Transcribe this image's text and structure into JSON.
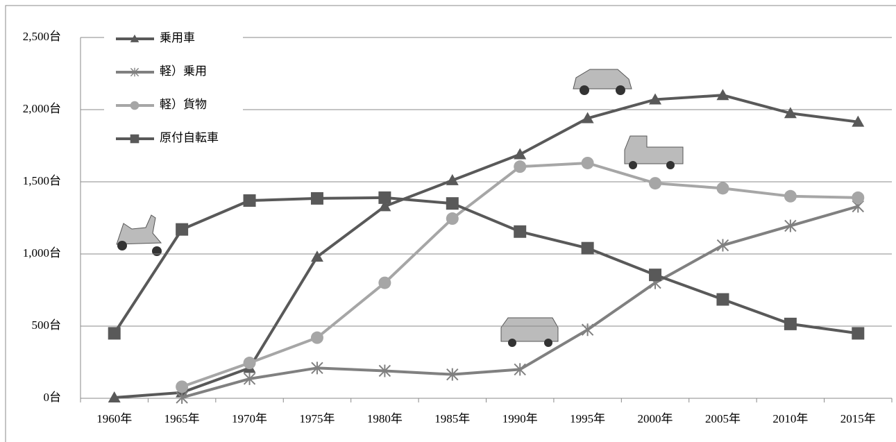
{
  "chart_data": {
    "type": "line",
    "categories": [
      "1960年",
      "1965年",
      "1970年",
      "1975年",
      "1980年",
      "1985年",
      "1990年",
      "1995年",
      "2000年",
      "2005年",
      "2010年",
      "2015年"
    ],
    "series": [
      {
        "name": "乗用車",
        "color": "#595959",
        "marker": "triangle",
        "values": [
          5,
          40,
          210,
          980,
          1330,
          1510,
          1690,
          1940,
          2070,
          2100,
          1975,
          1915
        ]
      },
      {
        "name": "軽）乗用",
        "color": "#808080",
        "marker": "asterisk",
        "values": [
          null,
          5,
          135,
          210,
          190,
          165,
          200,
          475,
          800,
          1060,
          1195,
          1330
        ]
      },
      {
        "name": "軽）貨物",
        "color": "#a6a6a6",
        "marker": "circle",
        "values": [
          null,
          80,
          245,
          420,
          800,
          1245,
          1605,
          1630,
          1490,
          1455,
          1400,
          1390
        ]
      },
      {
        "name": "原付自転車",
        "color": "#595959",
        "marker": "square",
        "values": [
          450,
          1170,
          1370,
          1385,
          1390,
          1350,
          1155,
          1040,
          855,
          685,
          515,
          450
        ]
      }
    ],
    "ylim": [
      0,
      2500
    ],
    "yticks": [
      {
        "value": 0,
        "label": "0台"
      },
      {
        "value": 500,
        "label": "500台"
      },
      {
        "value": 1000,
        "label": "1,000台"
      },
      {
        "value": 1500,
        "label": "1,500台"
      },
      {
        "value": 2000,
        "label": "2,000台"
      },
      {
        "value": 2500,
        "label": "2,500台"
      }
    ],
    "grid": true,
    "legend": "top-left"
  }
}
